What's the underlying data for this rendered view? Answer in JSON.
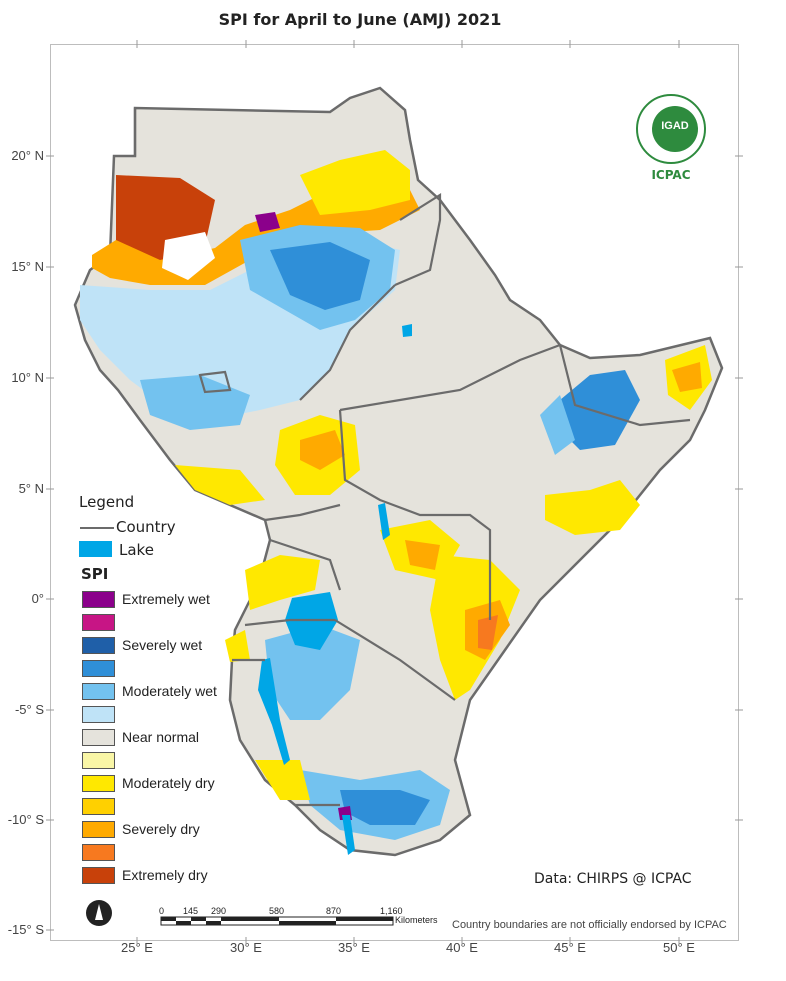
{
  "title": "SPI   for  April to June (AMJ) 2021",
  "lat_labels": [
    "20° N",
    "15° N",
    "10° N",
    "5° N",
    "0°",
    "-5° S",
    "-10° S",
    "-15° S"
  ],
  "lon_labels": [
    "25° E",
    "30° E",
    "35° E",
    "40° E",
    "45° E",
    "50° E"
  ],
  "legend": {
    "heading": "Legend",
    "country_label": "Country",
    "lake_label": "Lake",
    "spi_heading": "SPI",
    "classes": [
      {
        "label": "Extremely wet",
        "color": "#8b008b"
      },
      {
        "label": "",
        "color": "#c71585"
      },
      {
        "label": "Severely wet",
        "color": "#1f5fa8"
      },
      {
        "label": "",
        "color": "#2f8fd8"
      },
      {
        "label": "Moderately wet",
        "color": "#73c2ef"
      },
      {
        "label": "",
        "color": "#bfe3f7"
      },
      {
        "label": "Near normal",
        "color": "#e5e3dc"
      },
      {
        "label": "",
        "color": "#f9f6a6"
      },
      {
        "label": "Moderately dry",
        "color": "#ffe800"
      },
      {
        "label": "",
        "color": "#ffd000"
      },
      {
        "label": "Severely dry",
        "color": "#ffaa00"
      },
      {
        "label": "",
        "color": "#f7791f"
      },
      {
        "label": "Extremely dry",
        "color": "#c8410a"
      }
    ],
    "lake_color": "#00a6e6",
    "country_line_color": "#6b6b6b"
  },
  "logo": {
    "emblem": "IGAD",
    "name": "ICPAC"
  },
  "credit": "Data: CHIRPS @ ICPAC",
  "scale_bar": {
    "ticks": [
      "0",
      "145",
      "290",
      "580",
      "870",
      "1,160"
    ],
    "unit": "Kilometers"
  },
  "disclaimer": "Country boundaries are not officially endorsed by ICPAC"
}
